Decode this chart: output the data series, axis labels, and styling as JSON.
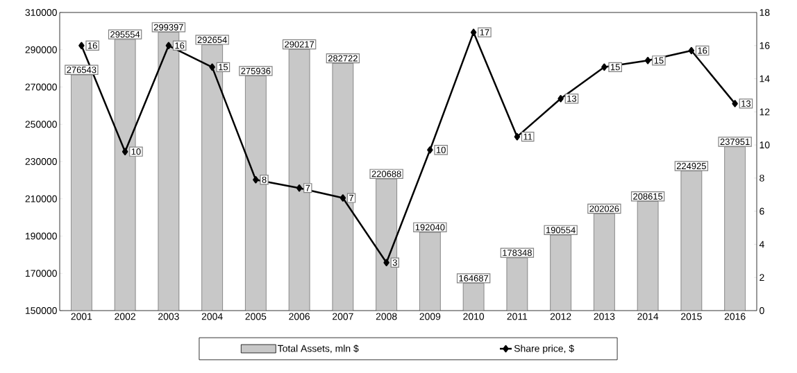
{
  "chart_data": {
    "type": "bar",
    "categories": [
      "2001",
      "2002",
      "2003",
      "2004",
      "2005",
      "2006",
      "2007",
      "2008",
      "2009",
      "2010",
      "2011",
      "2012",
      "2013",
      "2014",
      "2015",
      "2016"
    ],
    "series": [
      {
        "name": "Total Assets, mln $",
        "color": "#c8c8c8",
        "values": [
          276543,
          295554,
          299397,
          292654,
          275936,
          290217,
          282722,
          220688,
          192040,
          164687,
          178348,
          190554,
          202026,
          208615,
          224925,
          237951
        ],
        "value_labels": [
          "276543",
          "295554",
          "299397",
          "292654",
          "275936",
          "290217",
          "282722",
          "220688",
          "192040",
          "164687",
          "178348",
          "190554",
          "202026",
          "208615",
          "224925",
          "237951"
        ]
      },
      {
        "name": "Share price, $",
        "type": "line",
        "axis": "y2",
        "color": "#000000",
        "marker": "diamond",
        "values": [
          16,
          9.6,
          16,
          14.7,
          7.9,
          7.4,
          6.8,
          2.9,
          9.7,
          16.8,
          10.5,
          12.8,
          14.7,
          15.1,
          15.7,
          12.5
        ],
        "value_labels": [
          "16",
          "10",
          "16",
          "15",
          "8",
          "7",
          "7",
          "3",
          "10",
          "17",
          "11",
          "13",
          "15",
          "15",
          "16",
          "13"
        ]
      }
    ],
    "ylim": [
      150000,
      310000
    ],
    "yticks": [
      150000,
      170000,
      190000,
      210000,
      230000,
      250000,
      270000,
      290000,
      310000
    ],
    "y2lim": [
      0,
      18
    ],
    "y2ticks": [
      0,
      2,
      4,
      6,
      8,
      10,
      12,
      14,
      16,
      18
    ],
    "legend": "bottom"
  }
}
